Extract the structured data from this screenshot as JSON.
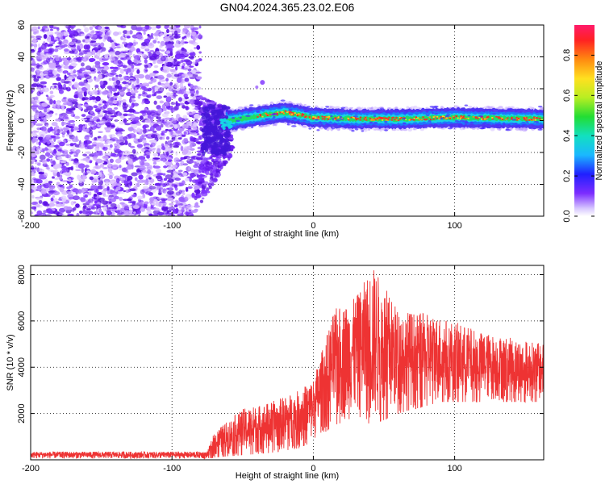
{
  "title": "GN04.2024.365.23.02.E06",
  "colors": {
    "snr_line": "#ee3333",
    "background_scatter": "#7b2cff",
    "frame": "#000000"
  },
  "chart_data": [
    {
      "type": "heatmap",
      "name": "spectrogram",
      "title": "GN04.2024.365.23.02.E06",
      "xlabel": "Height of straight line (km)",
      "ylabel": "Frequency (Hz)",
      "xlim": [
        -200,
        163
      ],
      "ylim": [
        -60,
        60
      ],
      "xticks": [
        -200,
        -100,
        0,
        100
      ],
      "yticks": [
        60,
        40,
        20,
        0,
        -20,
        -40,
        -60
      ],
      "grid": true,
      "colorbar": {
        "label": "Normalized spectral amplitude",
        "range": [
          0,
          0.95
        ],
        "ticks": [
          0.0,
          0.2,
          0.4,
          0.6,
          0.8
        ],
        "colormap": "rainbow"
      },
      "regions": [
        {
          "x_range": [
            -200,
            -80
          ],
          "freq_range": [
            -60,
            60
          ],
          "amplitude": 0.05,
          "description": "broadband noise"
        },
        {
          "x_range": [
            -80,
            -60
          ],
          "freq_range": [
            -40,
            25
          ],
          "amplitude": 0.1,
          "description": "transition"
        },
        {
          "x_range": [
            -60,
            163
          ],
          "freq_range": [
            -5,
            8
          ],
          "amplitude": 0.3,
          "description": "narrowband carrier"
        }
      ],
      "carrier_center_hz": [
        {
          "x": -60,
          "freq": 0
        },
        {
          "x": -30,
          "freq": 4
        },
        {
          "x": -20,
          "freq": 5
        },
        {
          "x": 0,
          "freq": 2
        },
        {
          "x": 30,
          "freq": 1
        },
        {
          "x": 60,
          "freq": 1
        },
        {
          "x": 100,
          "freq": 2
        },
        {
          "x": 163,
          "freq": 1
        }
      ]
    },
    {
      "type": "line",
      "name": "snr",
      "xlabel": "Height of straight line (km)",
      "ylabel": "SNR (10 * v/v)",
      "xlim": [
        -200,
        163
      ],
      "ylim": [
        0,
        8400
      ],
      "xticks": [
        -200,
        -100,
        0,
        100
      ],
      "yticks": [
        2000,
        4000,
        6000,
        8000
      ],
      "grid": true,
      "envelope": [
        {
          "x": -200,
          "low": 50,
          "high": 350
        },
        {
          "x": -75,
          "low": 50,
          "high": 350
        },
        {
          "x": -70,
          "low": 100,
          "high": 1200
        },
        {
          "x": -50,
          "low": 200,
          "high": 2200
        },
        {
          "x": -30,
          "low": 300,
          "high": 2500
        },
        {
          "x": -10,
          "low": 500,
          "high": 3000
        },
        {
          "x": 0,
          "low": 800,
          "high": 3500
        },
        {
          "x": 15,
          "low": 1500,
          "high": 6500
        },
        {
          "x": 30,
          "low": 1800,
          "high": 7000
        },
        {
          "x": 42,
          "low": 1500,
          "high": 8400
        },
        {
          "x": 60,
          "low": 2000,
          "high": 6500
        },
        {
          "x": 90,
          "low": 2500,
          "high": 6200
        },
        {
          "x": 120,
          "low": 2500,
          "high": 5500
        },
        {
          "x": 163,
          "low": 2500,
          "high": 5000
        }
      ]
    }
  ]
}
